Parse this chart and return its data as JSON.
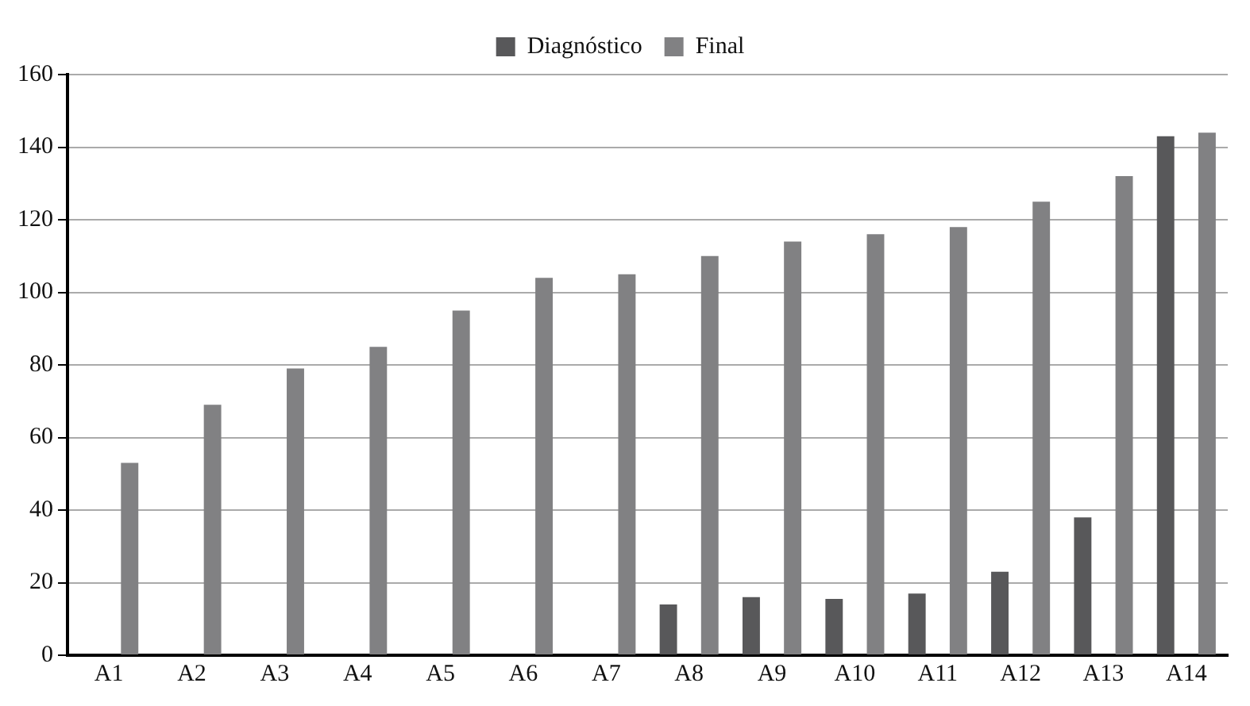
{
  "chart_data": {
    "type": "bar",
    "categories": [
      "A1",
      "A2",
      "A3",
      "A4",
      "A5",
      "A6",
      "A7",
      "A8",
      "A9",
      "A10",
      "A11",
      "A12",
      "A13",
      "A14"
    ],
    "series": [
      {
        "name": "Diagnóstico",
        "color": "#58585a",
        "values": [
          0,
          0,
          0,
          0,
          0,
          0,
          0,
          14,
          16,
          15.5,
          17,
          23,
          38,
          143
        ]
      },
      {
        "name": "Final",
        "color": "#818183",
        "values": [
          53,
          69,
          79,
          85,
          95,
          104,
          105,
          110,
          114,
          116,
          118,
          125,
          132,
          144
        ]
      }
    ],
    "ylim": [
      0,
      160
    ],
    "yticks": [
      0,
      20,
      40,
      60,
      80,
      100,
      120,
      140,
      160
    ],
    "grid": "y",
    "legend": "top"
  }
}
